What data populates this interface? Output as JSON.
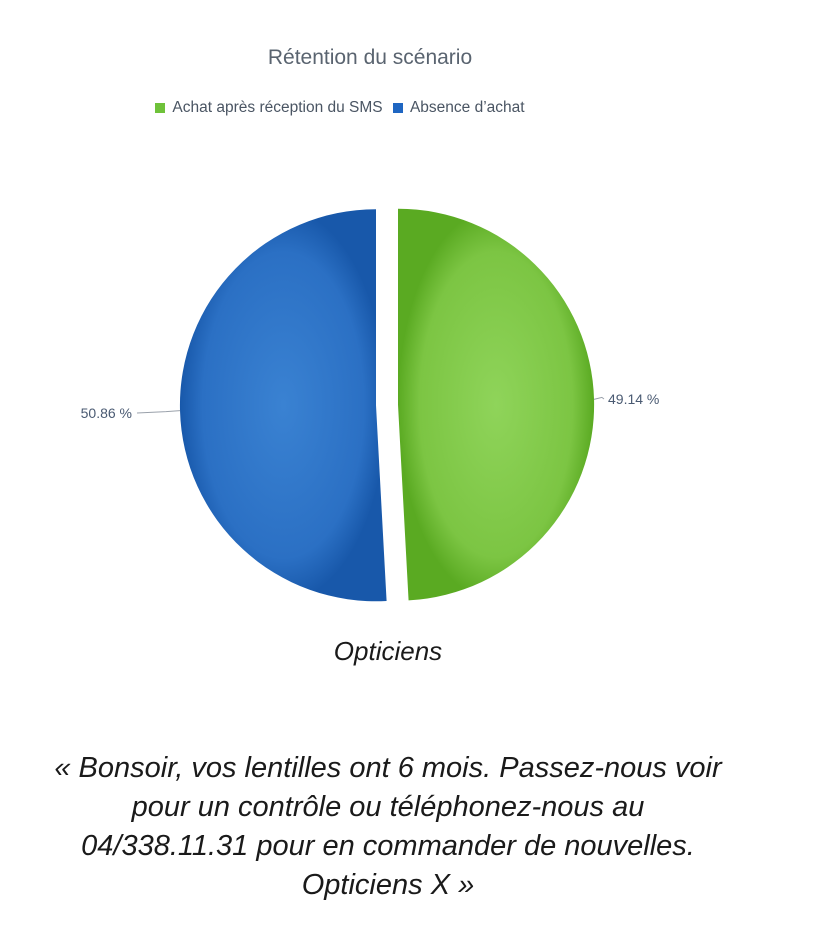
{
  "chart_data": {
    "type": "pie",
    "title": "Rétention du scénario",
    "legend_position": "top",
    "series": [
      {
        "name": "Achat après réception du SMS",
        "value": 49.14,
        "label": "49.14 %",
        "color": "#7cc543"
      },
      {
        "name": "Absence d’achat",
        "value": 50.86,
        "label": "50.86 %",
        "color": "#2b70c4"
      }
    ]
  },
  "caption": "Opticiens",
  "quote": {
    "lines": [
      "« Bonsoir, vos lentilles ont 6 mois. Passez-nous voir",
      "pour un contrôle ou téléphonez-nous au",
      "04/338.11.31 pour en commander de nouvelles.",
      "Opticiens X »"
    ]
  }
}
